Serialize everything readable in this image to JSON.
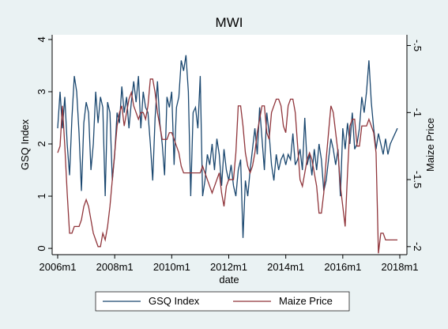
{
  "chart_data": {
    "type": "line",
    "title": "MWI",
    "x_label": "date",
    "y_label": "GSQ Index",
    "y2_label": "Maize Price",
    "x": [
      "2006m1",
      "2006m2",
      "2006m3",
      "2006m4",
      "2006m5",
      "2006m6",
      "2006m7",
      "2006m8",
      "2006m9",
      "2006m10",
      "2006m11",
      "2006m12",
      "2007m1",
      "2007m2",
      "2007m3",
      "2007m4",
      "2007m5",
      "2007m6",
      "2007m7",
      "2007m8",
      "2007m9",
      "2007m10",
      "2007m11",
      "2007m12",
      "2008m1",
      "2008m2",
      "2008m3",
      "2008m4",
      "2008m5",
      "2008m6",
      "2008m7",
      "2008m8",
      "2008m9",
      "2008m10",
      "2008m11",
      "2008m12",
      "2009m1",
      "2009m2",
      "2009m3",
      "2009m4",
      "2009m5",
      "2009m6",
      "2009m7",
      "2009m8",
      "2009m9",
      "2009m10",
      "2009m11",
      "2009m12",
      "2010m1",
      "2010m2",
      "2010m3",
      "2010m4",
      "2010m5",
      "2010m6",
      "2010m7",
      "2010m8",
      "2010m9",
      "2010m10",
      "2010m11",
      "2010m12",
      "2011m1",
      "2011m2",
      "2011m3",
      "2011m4",
      "2011m5",
      "2011m6",
      "2011m7",
      "2011m8",
      "2011m9",
      "2011m10",
      "2011m11",
      "2011m12",
      "2012m1",
      "2012m2",
      "2012m3",
      "2012m4",
      "2012m5",
      "2012m6",
      "2012m7",
      "2012m8",
      "2012m9",
      "2012m10",
      "2012m11",
      "2012m12",
      "2013m1",
      "2013m2",
      "2013m3",
      "2013m4",
      "2013m5",
      "2013m6",
      "2013m7",
      "2013m8",
      "2013m9",
      "2013m10",
      "2013m11",
      "2013m12",
      "2014m1",
      "2014m2",
      "2014m3",
      "2014m4",
      "2014m5",
      "2014m6",
      "2014m7",
      "2014m8",
      "2014m9",
      "2014m10",
      "2014m11",
      "2014m12",
      "2015m1",
      "2015m2",
      "2015m3",
      "2015m4",
      "2015m5",
      "2015m6",
      "2015m7",
      "2015m8",
      "2015m9",
      "2015m10",
      "2015m11",
      "2015m12",
      "2016m1",
      "2016m2",
      "2016m3",
      "2016m4",
      "2016m5",
      "2016m6",
      "2016m7",
      "2016m8",
      "2016m9",
      "2016m10",
      "2016m11",
      "2016m12",
      "2017m1",
      "2017m2",
      "2017m3",
      "2017m4",
      "2017m5",
      "2017m6",
      "2017m7",
      "2017m8",
      "2017m9",
      "2017m10",
      "2017m11",
      "2017m12"
    ],
    "series": [
      {
        "name": "GSQ Index",
        "color": "#1a476f",
        "values": [
          2.3,
          3.0,
          2.3,
          2.9,
          2.0,
          1.4,
          2.5,
          3.3,
          3.0,
          2.2,
          1.1,
          2.4,
          2.8,
          2.6,
          1.5,
          2.0,
          3.0,
          2.4,
          2.9,
          2.7,
          1.0,
          2.8,
          2.6,
          1.3,
          1.8,
          2.6,
          2.4,
          3.1,
          2.6,
          2.9,
          2.3,
          2.8,
          3.2,
          2.8,
          3.3,
          2.3,
          3.0,
          2.7,
          2.6,
          2.0,
          1.3,
          2.5,
          3.2,
          2.4,
          2.0,
          1.4,
          2.9,
          2.7,
          3.0,
          1.6,
          2.7,
          2.9,
          3.6,
          3.4,
          3.7,
          3.0,
          1.0,
          2.6,
          2.7,
          2.3,
          3.3,
          1.0,
          1.3,
          1.8,
          1.6,
          2.0,
          1.5,
          2.1,
          1.8,
          1.2,
          1.9,
          1.5,
          1.3,
          1.6,
          1.2,
          1.0,
          1.5,
          1.7,
          0.2,
          1.3,
          1.0,
          1.5,
          1.9,
          2.3,
          1.8,
          2.7,
          2.1,
          1.5,
          2.6,
          2.2,
          1.6,
          1.3,
          1.8,
          1.5,
          1.7,
          1.8,
          1.6,
          1.8,
          1.7,
          2.2,
          1.6,
          1.7,
          1.9,
          1.5,
          2.5,
          1.6,
          1.8,
          1.4,
          1.9,
          1.5,
          2.0,
          1.7,
          1.1,
          1.3,
          1.7,
          2.1,
          1.9,
          1.6,
          1.9,
          1.0,
          2.3,
          1.9,
          2.4,
          2.0,
          2.6,
          1.9,
          2.0,
          2.3,
          2.9,
          2.6,
          3.0,
          3.6,
          2.8,
          2.3,
          1.9,
          2.2,
          2.0,
          1.8,
          2.1,
          1.8,
          2.0,
          2.1,
          2.2,
          2.3
        ]
      },
      {
        "name": "Maize Price",
        "color": "#90353b",
        "axis": "y2",
        "values": [
          -1.3,
          -1.25,
          -0.95,
          -1.25,
          -1.6,
          -1.9,
          -1.9,
          -1.85,
          -1.85,
          -1.85,
          -1.8,
          -1.7,
          -1.65,
          -1.7,
          -1.8,
          -1.9,
          -1.95,
          -2.0,
          -2.0,
          -1.9,
          -1.95,
          -1.85,
          -1.7,
          -1.5,
          -1.3,
          -1.1,
          -1.0,
          -0.95,
          -1.1,
          -1.0,
          -0.9,
          -0.85,
          -0.95,
          -1.0,
          -1.05,
          -1.0,
          -1.0,
          -1.05,
          -0.95,
          -0.75,
          -0.75,
          -0.85,
          -1.0,
          -1.1,
          -1.2,
          -1.2,
          -1.2,
          -1.15,
          -1.15,
          -1.2,
          -1.25,
          -1.3,
          -1.4,
          -1.45,
          -1.45,
          -1.45,
          -1.45,
          -1.45,
          -1.45,
          -1.45,
          -1.45,
          -1.4,
          -1.45,
          -1.5,
          -1.55,
          -1.6,
          -1.55,
          -1.5,
          -1.45,
          -1.6,
          -1.7,
          -1.55,
          -1.5,
          -1.5,
          -1.5,
          -1.3,
          -0.95,
          -0.95,
          -1.1,
          -1.3,
          -1.4,
          -1.45,
          -1.4,
          -1.3,
          -1.15,
          -1.05,
          -0.95,
          -0.95,
          -1.15,
          -1.2,
          -1.0,
          -0.95,
          -0.9,
          -0.9,
          -0.95,
          -1.1,
          -1.15,
          -0.95,
          -0.9,
          -0.9,
          -1.0,
          -1.25,
          -1.5,
          -1.55,
          -1.45,
          -1.35,
          -1.3,
          -1.35,
          -1.45,
          -1.55,
          -1.75,
          -1.75,
          -1.6,
          -1.35,
          -1.15,
          -0.95,
          -1.0,
          -1.15,
          -1.3,
          -1.55,
          -1.7,
          -1.85,
          -1.45,
          -1.1,
          -1.05,
          -1.05,
          -1.25,
          -1.25,
          -1.1,
          -1.1,
          -1.1,
          -1.05,
          -1.1,
          -1.15,
          -1.3,
          -2.05,
          -1.9,
          -1.9,
          -1.95,
          -1.95,
          -1.95,
          -1.95,
          -1.95,
          -1.95
        ]
      }
    ],
    "xticks": [
      "2006m1",
      "2008m1",
      "2010m1",
      "2012m1",
      "2014m1",
      "2016m1",
      "2018m1"
    ],
    "ylim": [
      -0.12,
      4.09
    ],
    "yticks": [
      0,
      1,
      2,
      3,
      4
    ],
    "y2lim": [
      -2.06,
      -0.42
    ],
    "y2ticks": [
      {
        "value": -2,
        "label": "-2"
      },
      {
        "value": -1.5,
        "label": "-1.5"
      },
      {
        "value": -1,
        "label": "-1"
      },
      {
        "value": -0.5,
        "label": "-.5"
      }
    ]
  }
}
